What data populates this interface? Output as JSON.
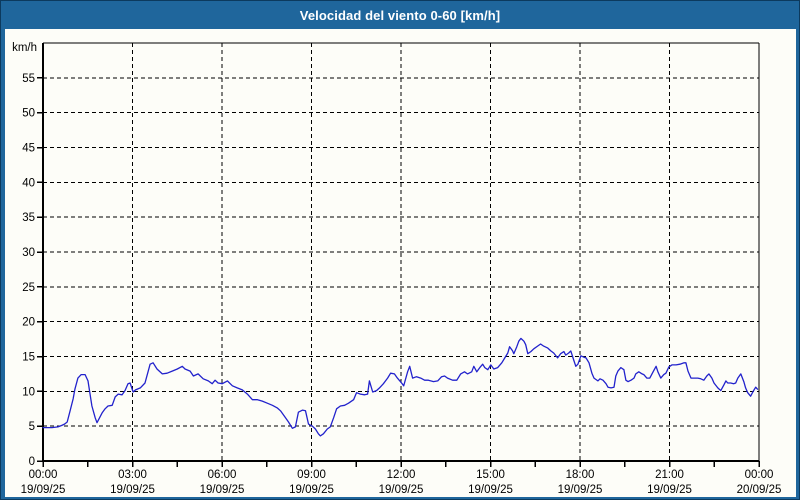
{
  "window": {
    "title": "Velocidad del viento 0-60 [km/h]"
  },
  "colors": {
    "frame_blue": "#1f669c",
    "outer_border": "#0c3a5e",
    "panel_bg": "#fdfdf8",
    "grid": "#000000",
    "axis": "#000000",
    "tick_text": "#000000",
    "title_text": "#ffffff",
    "series_line": "#2222cc"
  },
  "chart_data": {
    "type": "line",
    "title": "Velocidad del viento 0-60 [km/h]",
    "ylabel": "km/h",
    "series_name": "Velocidad del viento",
    "ylim": [
      0,
      60
    ],
    "yticks": [
      0,
      5,
      10,
      15,
      20,
      25,
      30,
      35,
      40,
      45,
      50,
      55
    ],
    "x_minor_step_hours": 1.5,
    "x_range_hours": [
      0,
      24
    ],
    "grid": "dashed",
    "legend": "none",
    "xticks": [
      {
        "hour": 0,
        "time": "00:00",
        "date": "19/09/25"
      },
      {
        "hour": 3,
        "time": "03:00",
        "date": "19/09/25"
      },
      {
        "hour": 6,
        "time": "06:00",
        "date": "19/09/25"
      },
      {
        "hour": 9,
        "time": "09:00",
        "date": "19/09/25"
      },
      {
        "hour": 12,
        "time": "12:00",
        "date": "19/09/25"
      },
      {
        "hour": 15,
        "time": "15:00",
        "date": "19/09/25"
      },
      {
        "hour": 18,
        "time": "18:00",
        "date": "19/09/25"
      },
      {
        "hour": 21,
        "time": "21:00",
        "date": "19/09/25"
      },
      {
        "hour": 24,
        "time": "00:00",
        "date": "20/09/25"
      }
    ],
    "points": [
      [
        0.0,
        4.8
      ],
      [
        0.3,
        4.8
      ],
      [
        0.5,
        4.9
      ],
      [
        0.62,
        5.1
      ],
      [
        0.72,
        5.3
      ],
      [
        0.81,
        5.6
      ],
      [
        0.91,
        7.2
      ],
      [
        1.01,
        8.9
      ],
      [
        1.07,
        10.3
      ],
      [
        1.17,
        11.9
      ],
      [
        1.28,
        12.4
      ],
      [
        1.41,
        12.4
      ],
      [
        1.51,
        11.5
      ],
      [
        1.64,
        7.9
      ],
      [
        1.75,
        6.2
      ],
      [
        1.81,
        5.5
      ],
      [
        1.98,
        6.9
      ],
      [
        2.08,
        7.5
      ],
      [
        2.18,
        7.9
      ],
      [
        2.32,
        8.0
      ],
      [
        2.42,
        9.2
      ],
      [
        2.52,
        9.6
      ],
      [
        2.65,
        9.5
      ],
      [
        2.75,
        10.1
      ],
      [
        2.85,
        11.1
      ],
      [
        2.92,
        11.2
      ],
      [
        3.02,
        9.9
      ],
      [
        3.1,
        10.2
      ],
      [
        3.26,
        10.5
      ],
      [
        3.42,
        11.2
      ],
      [
        3.59,
        13.9
      ],
      [
        3.69,
        14.1
      ],
      [
        3.82,
        13.2
      ],
      [
        4.0,
        12.5
      ],
      [
        4.16,
        12.6
      ],
      [
        4.33,
        12.9
      ],
      [
        4.5,
        13.2
      ],
      [
        4.67,
        13.6
      ],
      [
        4.76,
        13.2
      ],
      [
        4.93,
        12.9
      ],
      [
        5.04,
        12.2
      ],
      [
        5.2,
        12.5
      ],
      [
        5.37,
        11.8
      ],
      [
        5.54,
        11.5
      ],
      [
        5.67,
        11.1
      ],
      [
        5.77,
        11.6
      ],
      [
        5.87,
        11.2
      ],
      [
        6.01,
        11.1
      ],
      [
        6.18,
        11.5
      ],
      [
        6.35,
        10.8
      ],
      [
        6.51,
        10.5
      ],
      [
        6.68,
        10.2
      ],
      [
        6.85,
        9.6
      ],
      [
        7.02,
        8.8
      ],
      [
        7.19,
        8.8
      ],
      [
        7.35,
        8.6
      ],
      [
        7.52,
        8.3
      ],
      [
        7.69,
        8.0
      ],
      [
        7.86,
        7.6
      ],
      [
        7.96,
        7.2
      ],
      [
        8.13,
        6.2
      ],
      [
        8.23,
        5.6
      ],
      [
        8.36,
        4.7
      ],
      [
        8.46,
        4.9
      ],
      [
        8.56,
        7.0
      ],
      [
        8.7,
        7.3
      ],
      [
        8.8,
        7.2
      ],
      [
        8.9,
        5.3
      ],
      [
        9.03,
        5.0
      ],
      [
        9.13,
        4.6
      ],
      [
        9.23,
        3.9
      ],
      [
        9.3,
        3.6
      ],
      [
        9.4,
        3.9
      ],
      [
        9.53,
        4.6
      ],
      [
        9.63,
        4.9
      ],
      [
        9.74,
        6.2
      ],
      [
        9.84,
        7.5
      ],
      [
        9.97,
        7.9
      ],
      [
        10.11,
        8.0
      ],
      [
        10.24,
        8.3
      ],
      [
        10.41,
        8.8
      ],
      [
        10.51,
        9.8
      ],
      [
        10.64,
        9.6
      ],
      [
        10.78,
        9.5
      ],
      [
        10.88,
        9.6
      ],
      [
        10.94,
        11.5
      ],
      [
        11.05,
        9.9
      ],
      [
        11.18,
        10.1
      ],
      [
        11.28,
        10.5
      ],
      [
        11.41,
        11.1
      ],
      [
        11.55,
        11.9
      ],
      [
        11.65,
        12.6
      ],
      [
        11.78,
        12.5
      ],
      [
        11.88,
        11.9
      ],
      [
        12.02,
        11.2
      ],
      [
        12.09,
        10.8
      ],
      [
        12.22,
        12.8
      ],
      [
        12.29,
        13.6
      ],
      [
        12.39,
        11.9
      ],
      [
        12.52,
        12.1
      ],
      [
        12.66,
        11.9
      ],
      [
        12.79,
        11.6
      ],
      [
        12.92,
        11.6
      ],
      [
        13.09,
        11.4
      ],
      [
        13.23,
        11.5
      ],
      [
        13.36,
        12.1
      ],
      [
        13.46,
        12.2
      ],
      [
        13.56,
        11.9
      ],
      [
        13.73,
        11.6
      ],
      [
        13.87,
        11.6
      ],
      [
        14.0,
        12.5
      ],
      [
        14.13,
        12.8
      ],
      [
        14.23,
        12.5
      ],
      [
        14.37,
        12.8
      ],
      [
        14.44,
        13.6
      ],
      [
        14.54,
        12.8
      ],
      [
        14.64,
        13.4
      ],
      [
        14.74,
        13.9
      ],
      [
        14.81,
        13.4
      ],
      [
        14.91,
        13.1
      ],
      [
        15.01,
        13.8
      ],
      [
        15.11,
        13.2
      ],
      [
        15.24,
        13.4
      ],
      [
        15.38,
        14.1
      ],
      [
        15.48,
        14.8
      ],
      [
        15.58,
        15.5
      ],
      [
        15.64,
        16.4
      ],
      [
        15.74,
        15.8
      ],
      [
        15.78,
        15.4
      ],
      [
        15.88,
        16.4
      ],
      [
        15.95,
        17.2
      ],
      [
        16.02,
        17.6
      ],
      [
        16.12,
        17.2
      ],
      [
        16.18,
        16.7
      ],
      [
        16.25,
        15.4
      ],
      [
        16.35,
        15.7
      ],
      [
        16.45,
        16.1
      ],
      [
        16.58,
        16.5
      ],
      [
        16.68,
        16.8
      ],
      [
        16.78,
        16.5
      ],
      [
        16.92,
        16.2
      ],
      [
        17.02,
        15.8
      ],
      [
        17.12,
        15.5
      ],
      [
        17.25,
        14.8
      ],
      [
        17.35,
        15.4
      ],
      [
        17.46,
        15.7
      ],
      [
        17.52,
        15.2
      ],
      [
        17.62,
        15.5
      ],
      [
        17.69,
        15.8
      ],
      [
        17.79,
        14.5
      ],
      [
        17.86,
        13.6
      ],
      [
        17.93,
        13.9
      ],
      [
        18.03,
        15.1
      ],
      [
        18.13,
        14.9
      ],
      [
        18.2,
        14.8
      ],
      [
        18.3,
        14.1
      ],
      [
        18.4,
        12.6
      ],
      [
        18.47,
        11.9
      ],
      [
        18.6,
        11.5
      ],
      [
        18.67,
        11.8
      ],
      [
        18.77,
        11.6
      ],
      [
        18.87,
        11.1
      ],
      [
        18.94,
        10.6
      ],
      [
        19.04,
        10.5
      ],
      [
        19.14,
        10.6
      ],
      [
        19.2,
        12.2
      ],
      [
        19.27,
        12.9
      ],
      [
        19.37,
        13.4
      ],
      [
        19.47,
        13.1
      ],
      [
        19.54,
        11.6
      ],
      [
        19.61,
        11.4
      ],
      [
        19.71,
        11.6
      ],
      [
        19.81,
        11.9
      ],
      [
        19.87,
        12.5
      ],
      [
        19.97,
        12.8
      ],
      [
        20.08,
        12.5
      ],
      [
        20.14,
        12.4
      ],
      [
        20.24,
        11.9
      ],
      [
        20.34,
        11.9
      ],
      [
        20.45,
        12.8
      ],
      [
        20.55,
        13.6
      ],
      [
        20.61,
        12.8
      ],
      [
        20.71,
        11.9
      ],
      [
        20.81,
        12.4
      ],
      [
        20.88,
        12.6
      ],
      [
        20.98,
        13.5
      ],
      [
        21.08,
        13.8
      ],
      [
        21.22,
        13.8
      ],
      [
        21.35,
        13.9
      ],
      [
        21.49,
        14.1
      ],
      [
        21.55,
        14.1
      ],
      [
        21.62,
        12.9
      ],
      [
        21.72,
        11.9
      ],
      [
        21.82,
        11.9
      ],
      [
        21.95,
        11.9
      ],
      [
        22.05,
        11.8
      ],
      [
        22.15,
        11.6
      ],
      [
        22.25,
        12.2
      ],
      [
        22.32,
        12.5
      ],
      [
        22.42,
        11.9
      ],
      [
        22.49,
        11.2
      ],
      [
        22.62,
        10.5
      ],
      [
        22.72,
        10.1
      ],
      [
        22.82,
        10.9
      ],
      [
        22.89,
        11.5
      ],
      [
        22.95,
        11.2
      ],
      [
        23.05,
        11.2
      ],
      [
        23.15,
        11.1
      ],
      [
        23.22,
        11.2
      ],
      [
        23.29,
        11.9
      ],
      [
        23.39,
        12.5
      ],
      [
        23.49,
        11.4
      ],
      [
        23.55,
        10.5
      ],
      [
        23.62,
        9.8
      ],
      [
        23.72,
        9.3
      ],
      [
        23.82,
        10.1
      ],
      [
        23.89,
        10.6
      ],
      [
        23.95,
        10.3
      ]
    ]
  }
}
